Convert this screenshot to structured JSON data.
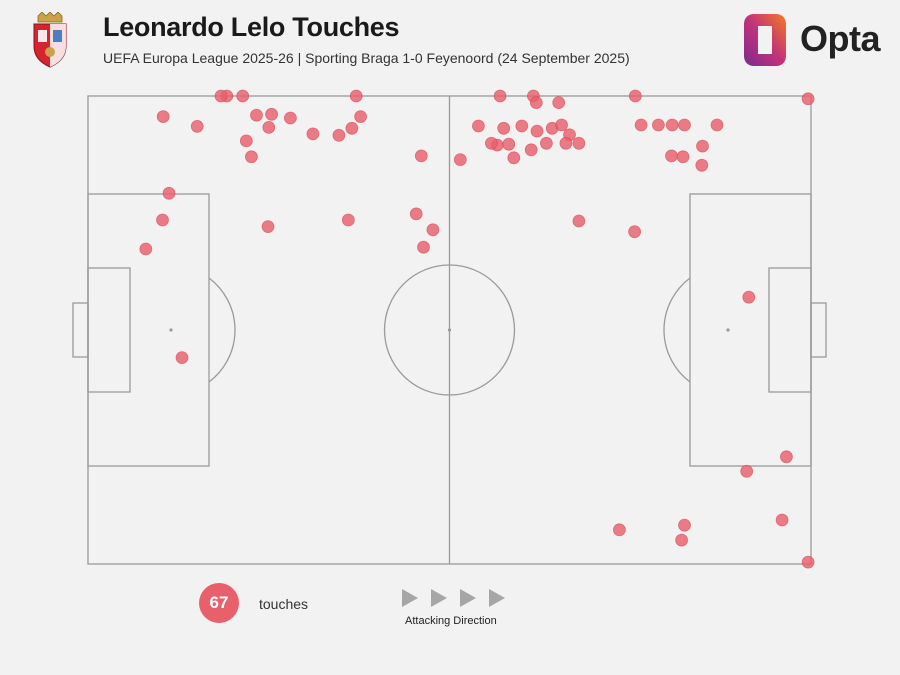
{
  "header": {
    "title": "Leonardo Lelo Touches",
    "subtitle": "UEFA Europa League 2025-26 | Sporting Braga 1-0 Feyenoord (24 September 2025)",
    "brand": "Opta"
  },
  "legend": {
    "count": "67",
    "count_label": "touches",
    "direction_label": "Attacking Direction"
  },
  "colors": {
    "touch": "#e8606b",
    "pitch_line": "#9a9a9a",
    "background": "#f2f2f2",
    "opta_orange": "#f47b20",
    "opta_magenta": "#c2327a",
    "opta_purple": "#7b2c8f"
  },
  "icons": [
    "club-crest-icon",
    "opta-logo-icon",
    "arrow-right-icon"
  ],
  "chart_data": {
    "type": "scatter",
    "pitch": "full",
    "attacking_direction": "left-to-right",
    "x_range": [
      0,
      100
    ],
    "y_range": [
      0,
      100
    ],
    "points": [
      [
        19.2,
        100.0
      ],
      [
        18.4,
        100.0
      ],
      [
        21.4,
        100.0
      ],
      [
        37.1,
        100.0
      ],
      [
        57.0,
        100.0
      ],
      [
        61.6,
        100.0
      ],
      [
        75.7,
        100.0
      ],
      [
        99.6,
        99.4
      ],
      [
        62.0,
        98.6
      ],
      [
        65.1,
        98.6
      ],
      [
        23.3,
        95.9
      ],
      [
        37.7,
        95.6
      ],
      [
        25.4,
        96.1
      ],
      [
        28.0,
        95.3
      ],
      [
        10.4,
        95.6
      ],
      [
        15.1,
        93.5
      ],
      [
        25.0,
        93.3
      ],
      [
        36.5,
        93.1
      ],
      [
        31.1,
        91.9
      ],
      [
        34.7,
        91.6
      ],
      [
        21.9,
        90.4
      ],
      [
        22.6,
        87.0
      ],
      [
        57.5,
        93.1
      ],
      [
        54.0,
        93.6
      ],
      [
        60.0,
        93.6
      ],
      [
        62.1,
        92.5
      ],
      [
        64.2,
        93.1
      ],
      [
        65.5,
        93.8
      ],
      [
        66.6,
        91.7
      ],
      [
        66.1,
        89.9
      ],
      [
        67.9,
        89.9
      ],
      [
        56.6,
        89.5
      ],
      [
        58.2,
        89.7
      ],
      [
        55.8,
        89.9
      ],
      [
        63.4,
        89.9
      ],
      [
        61.3,
        88.5
      ],
      [
        58.9,
        86.8
      ],
      [
        46.1,
        87.2
      ],
      [
        51.5,
        86.4
      ],
      [
        76.5,
        93.8
      ],
      [
        78.9,
        93.8
      ],
      [
        80.8,
        93.8
      ],
      [
        82.5,
        93.8
      ],
      [
        87.0,
        93.8
      ],
      [
        85.0,
        89.3
      ],
      [
        80.7,
        87.2
      ],
      [
        82.3,
        87.0
      ],
      [
        84.9,
        85.2
      ],
      [
        11.2,
        79.2
      ],
      [
        10.3,
        73.5
      ],
      [
        8.0,
        67.3
      ],
      [
        24.9,
        72.1
      ],
      [
        36.0,
        73.5
      ],
      [
        45.4,
        74.8
      ],
      [
        47.7,
        71.4
      ],
      [
        46.4,
        67.7
      ],
      [
        67.9,
        73.3
      ],
      [
        75.6,
        71.0
      ],
      [
        91.4,
        57.0
      ],
      [
        13.0,
        44.1
      ],
      [
        96.6,
        22.9
      ],
      [
        91.1,
        19.8
      ],
      [
        96.0,
        9.4
      ],
      [
        82.5,
        8.3
      ],
      [
        73.5,
        7.3
      ],
      [
        82.1,
        5.1
      ],
      [
        99.6,
        0.4
      ]
    ]
  }
}
